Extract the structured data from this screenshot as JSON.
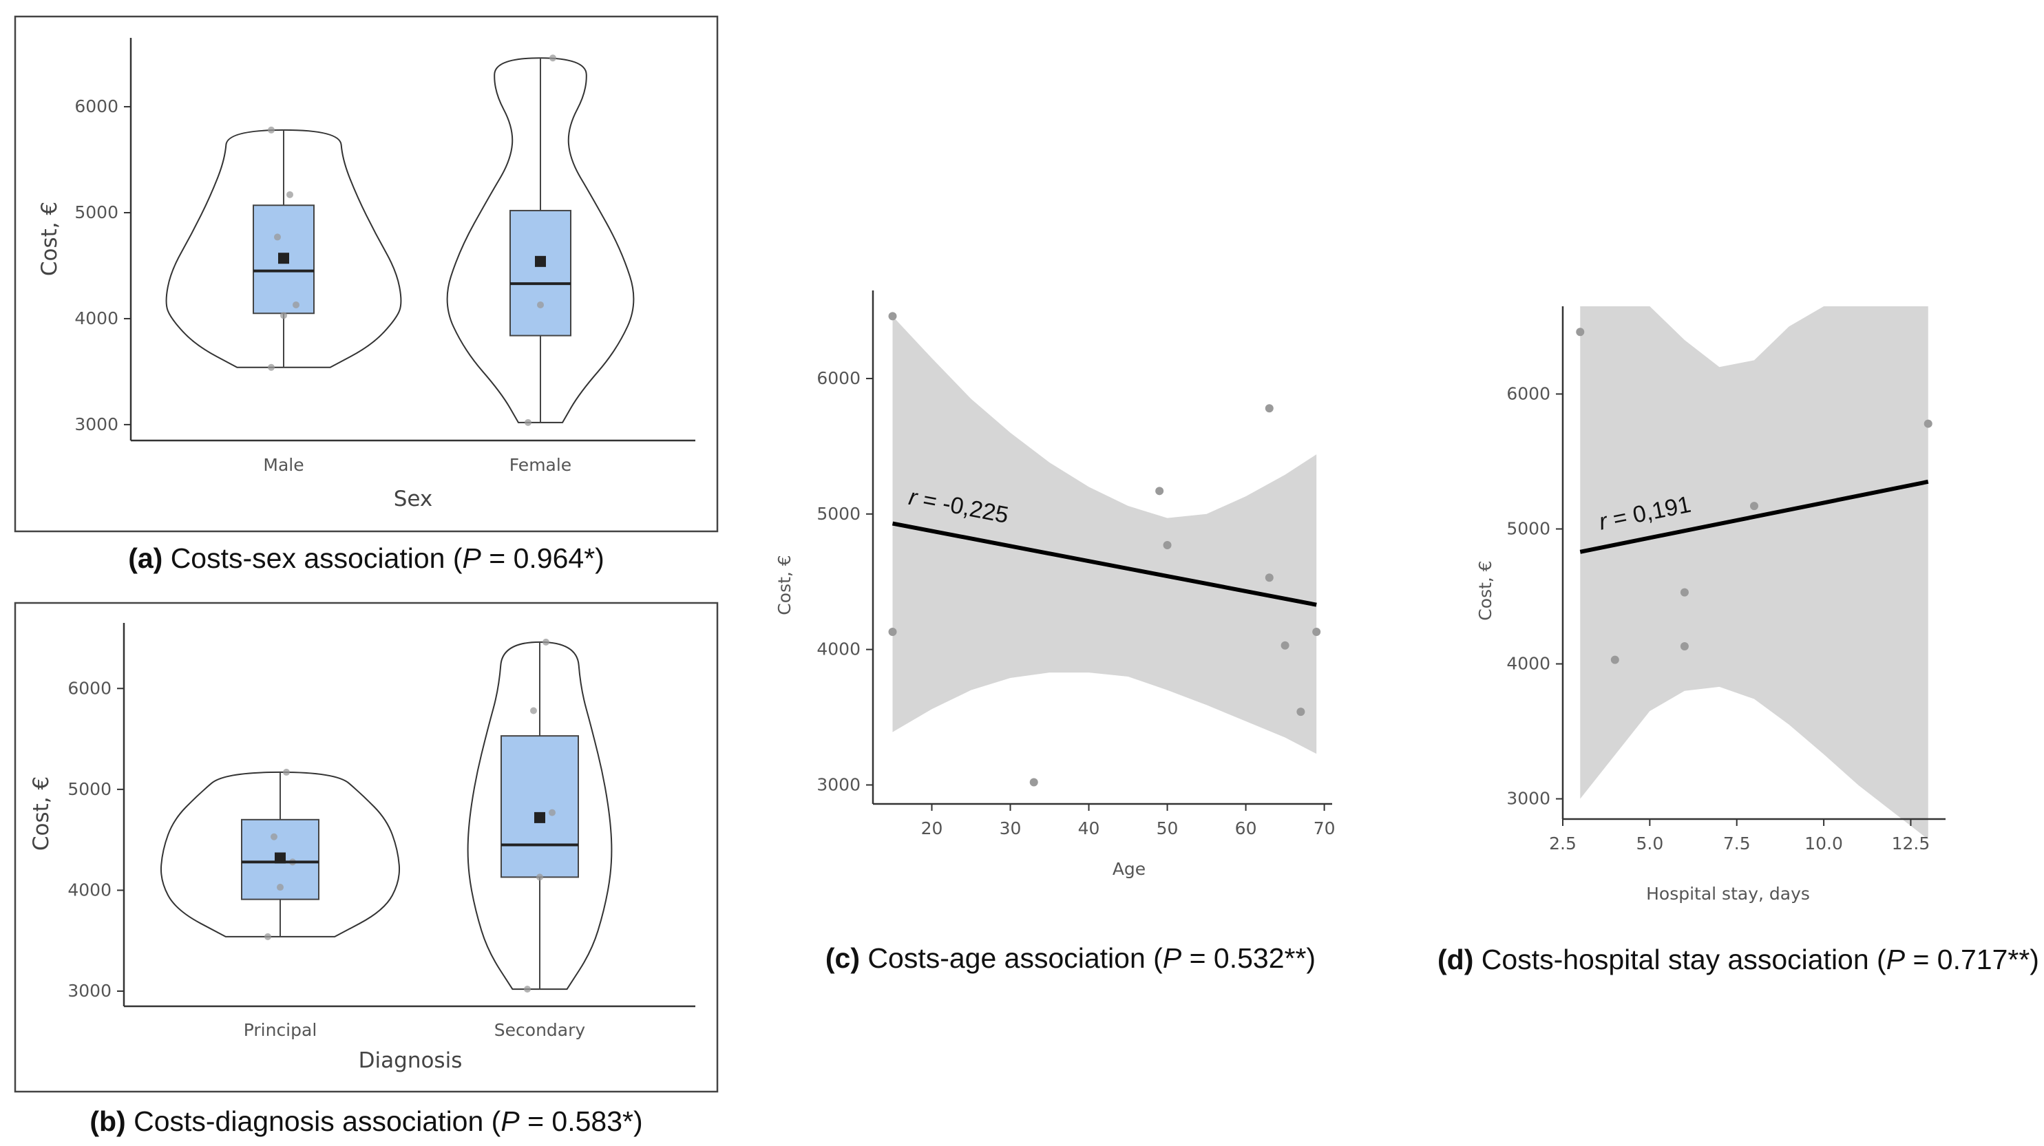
{
  "chart_data": [
    {
      "id": "a",
      "type": "violin",
      "ylabel": "Cost, €",
      "xlabel": "Sex",
      "ylim": [
        2850,
        6650
      ],
      "yticks": [
        3000,
        4000,
        5000,
        6000
      ],
      "categories": [
        "Male",
        "Female"
      ],
      "groups": [
        {
          "name": "Male",
          "min": 3540,
          "q1": 4050,
          "median": 4450,
          "q3": 5070,
          "max": 5780,
          "mean": 4570,
          "points": [
            3540,
            4030,
            4130,
            4770,
            5170,
            5780
          ],
          "violin": [
            [
              3540,
              0.38
            ],
            [
              3750,
              0.72
            ],
            [
              4000,
              0.92
            ],
            [
              4150,
              0.97
            ],
            [
              4450,
              0.92
            ],
            [
              4800,
              0.75
            ],
            [
              5150,
              0.6
            ],
            [
              5500,
              0.48
            ],
            [
              5780,
              0.46
            ]
          ]
        },
        {
          "name": "Female",
          "min": 3020,
          "q1": 3840,
          "median": 4330,
          "q3": 5020,
          "max": 6460,
          "mean": 4540,
          "points": [
            3020,
            4130,
            6460
          ],
          "violin": [
            [
              3020,
              0.18
            ],
            [
              3300,
              0.32
            ],
            [
              3700,
              0.62
            ],
            [
              4150,
              0.8
            ],
            [
              4650,
              0.66
            ],
            [
              5150,
              0.42
            ],
            [
              5500,
              0.24
            ],
            [
              5800,
              0.22
            ],
            [
              6150,
              0.38
            ],
            [
              6460,
              0.37
            ]
          ]
        }
      ],
      "caption": {
        "label": "(a)",
        "text": " Costs-sex association (",
        "p": "P",
        "value": " = 0.964*)"
      }
    },
    {
      "id": "b",
      "type": "violin",
      "ylabel": "Cost, €",
      "xlabel": "Diagnosis",
      "ylim": [
        2850,
        6650
      ],
      "yticks": [
        3000,
        4000,
        5000,
        6000
      ],
      "categories": [
        "Principal",
        "Secondary"
      ],
      "groups": [
        {
          "name": "Principal",
          "min": 3540,
          "q1": 3910,
          "median": 4280,
          "q3": 4700,
          "max": 5170,
          "mean": 4320,
          "points": [
            3540,
            4030,
            4280,
            4530,
            5170
          ],
          "violin": [
            [
              3540,
              0.44
            ],
            [
              3800,
              0.84
            ],
            [
              4100,
              0.97
            ],
            [
              4400,
              0.95
            ],
            [
              4700,
              0.86
            ],
            [
              4950,
              0.66
            ],
            [
              5170,
              0.45
            ]
          ]
        },
        {
          "name": "Secondary",
          "min": 3020,
          "q1": 4130,
          "median": 4450,
          "q3": 5530,
          "max": 6460,
          "mean": 4720,
          "points": [
            3020,
            4130,
            4770,
            5780,
            6460
          ],
          "violin": [
            [
              3020,
              0.22
            ],
            [
              3400,
              0.42
            ],
            [
              3800,
              0.52
            ],
            [
              4200,
              0.58
            ],
            [
              4600,
              0.58
            ],
            [
              5100,
              0.52
            ],
            [
              5600,
              0.42
            ],
            [
              6000,
              0.33
            ],
            [
              6460,
              0.3
            ]
          ]
        }
      ],
      "caption": {
        "label": "(b)",
        "text": " Costs-diagnosis association (",
        "p": "P",
        "value": " = 0.583*)"
      }
    },
    {
      "id": "c",
      "type": "scatter",
      "ylabel": "Cost, €",
      "xlabel": "Age",
      "xlim": [
        12.5,
        71
      ],
      "ylim": [
        2860,
        6650
      ],
      "xticks": [
        20,
        30,
        40,
        50,
        60,
        70
      ],
      "yticks": [
        3000,
        4000,
        5000,
        6000
      ],
      "points": [
        [
          15,
          6460
        ],
        [
          15,
          4130
        ],
        [
          33,
          3020
        ],
        [
          49,
          5170
        ],
        [
          50,
          4770
        ],
        [
          63,
          5780
        ],
        [
          63,
          4530
        ],
        [
          65,
          4030
        ],
        [
          67,
          3540
        ],
        [
          69,
          4130
        ]
      ],
      "fit": {
        "x": [
          15,
          69
        ],
        "y": [
          4930,
          4330
        ]
      },
      "band": [
        [
          15,
          6460,
          3390
        ],
        [
          20,
          6150,
          3560
        ],
        [
          25,
          5850,
          3700
        ],
        [
          30,
          5600,
          3790
        ],
        [
          35,
          5380,
          3830
        ],
        [
          40,
          5200,
          3830
        ],
        [
          45,
          5060,
          3800
        ],
        [
          50,
          4970,
          3700
        ],
        [
          55,
          5000,
          3590
        ],
        [
          60,
          5130,
          3470
        ],
        [
          65,
          5290,
          3350
        ],
        [
          69,
          5440,
          3230
        ]
      ],
      "r_label": "r = -0,225",
      "caption": {
        "label": "(c)",
        "text": " Costs-age association (",
        "p": "P",
        "value": " = 0.532**)"
      }
    },
    {
      "id": "d",
      "type": "scatter",
      "ylabel": "Cost, €",
      "xlabel": "Hospital stay, days",
      "xlim": [
        2.5,
        13.5
      ],
      "ylim": [
        2850,
        6650
      ],
      "xticks": [
        2.5,
        5.0,
        7.5,
        10.0,
        12.5
      ],
      "xtick_labels": [
        "2.5",
        "5.0",
        "7.5",
        "10.0",
        "12.5"
      ],
      "yticks": [
        3000,
        4000,
        5000,
        6000
      ],
      "points": [
        [
          3,
          6460
        ],
        [
          4,
          4030
        ],
        [
          6,
          4530
        ],
        [
          6,
          4130
        ],
        [
          8,
          5170
        ],
        [
          13,
          5780
        ]
      ],
      "fit": {
        "x": [
          3,
          13
        ],
        "y": [
          4830,
          5350
        ]
      },
      "band": [
        [
          3,
          6650,
          3000
        ],
        [
          5,
          6650,
          3650
        ],
        [
          6,
          6400,
          3800
        ],
        [
          7,
          6200,
          3830
        ],
        [
          8,
          6250,
          3740
        ],
        [
          9,
          6500,
          3550
        ],
        [
          10,
          6650,
          3330
        ],
        [
          11,
          6650,
          3100
        ],
        [
          12,
          6650,
          2900
        ],
        [
          13,
          6650,
          2700
        ]
      ],
      "r_label": "r = 0,191",
      "caption": {
        "label": "(d)",
        "text": " Costs-hospital stay association (",
        "p": "P",
        "value": " = 0.717**)"
      }
    }
  ]
}
